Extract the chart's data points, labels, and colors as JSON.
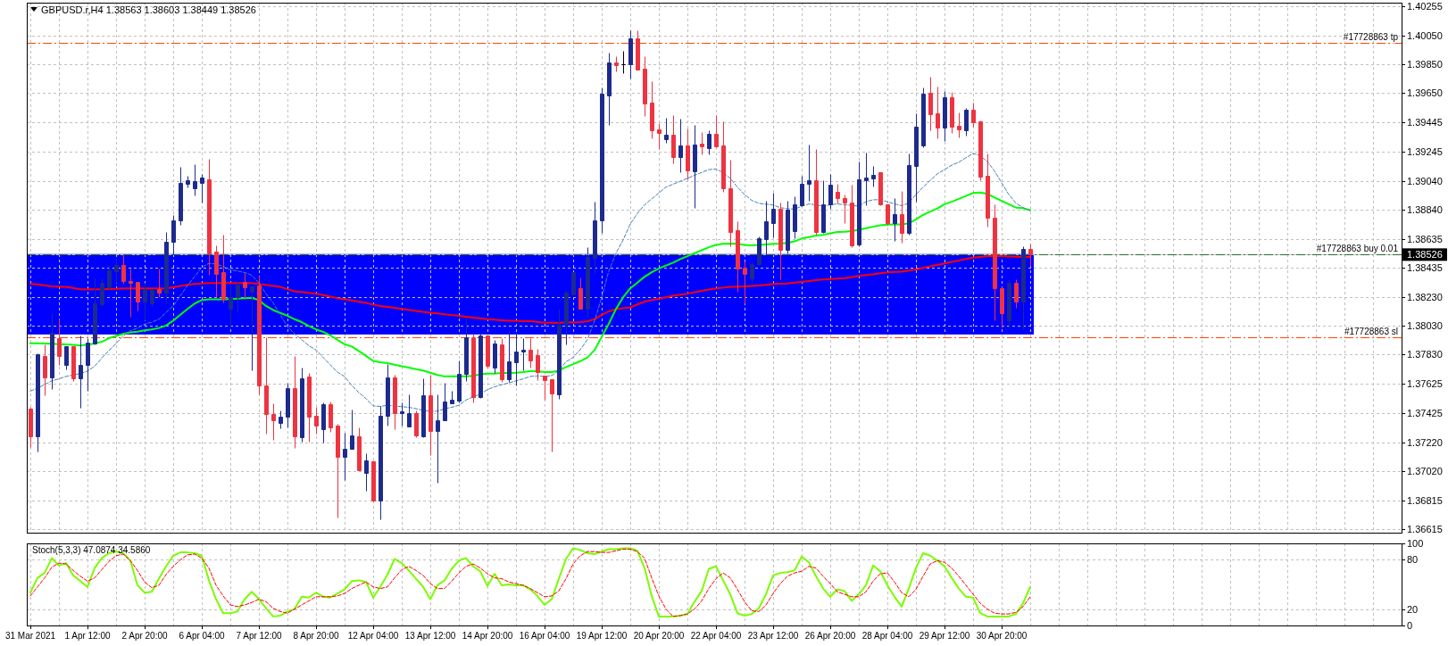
{
  "chart_data": [
    {
      "type": "candlestick",
      "title": "GBPUSD.r,H4 1.38563 1.38603 1.38449 1.38526",
      "categories": [
        null,
        null,
        null,
        null,
        null,
        null,
        null,
        null,
        null,
        null,
        null,
        null,
        null,
        null,
        null,
        null,
        null,
        null,
        null,
        null,
        null,
        null,
        null,
        null,
        null,
        null,
        null,
        null,
        null,
        null,
        null,
        null,
        null,
        null,
        null,
        null,
        null,
        null,
        null,
        null,
        null,
        null,
        null,
        null,
        null,
        null,
        null,
        null,
        null,
        null,
        null,
        null,
        null,
        null,
        null,
        null,
        null,
        null,
        null,
        null,
        null,
        null,
        null,
        null,
        null,
        null,
        null,
        null,
        null,
        null,
        null,
        null,
        null,
        null,
        null,
        null,
        null,
        null,
        null,
        null,
        null,
        null,
        null,
        null,
        null,
        null,
        null,
        null,
        null,
        null,
        null,
        null,
        null,
        null,
        null,
        null,
        null,
        null,
        null,
        null,
        null,
        null,
        null,
        null,
        null,
        null,
        null,
        null,
        null,
        null,
        null,
        null,
        null,
        null,
        null,
        null,
        null,
        null,
        null,
        null,
        null,
        null,
        null,
        null,
        null,
        null,
        null,
        null,
        null,
        null,
        null,
        null,
        null,
        null,
        null,
        null,
        null,
        null,
        null,
        null,
        null
      ],
      "ohlc": [
        [
          1.37453,
          1.37463,
          1.37187,
          1.37258
        ],
        [
          1.37258,
          1.37841,
          1.37156,
          1.37831
        ],
        [
          1.37821,
          1.37902,
          1.37549,
          1.37671
        ],
        [
          1.37671,
          1.38117,
          1.37592,
          1.37984
        ],
        [
          1.37943,
          1.38082,
          1.37759,
          1.37821
        ],
        [
          1.37759,
          1.37886,
          1.37729,
          1.37886
        ],
        [
          1.37886,
          1.37886,
          1.37647,
          1.37667
        ],
        [
          1.37667,
          1.37964,
          1.37457,
          1.37755
        ],
        [
          1.37755,
          1.37943,
          1.37579,
          1.37913
        ],
        [
          1.37906,
          1.38368,
          1.37902,
          1.38184
        ],
        [
          1.38178,
          1.38358,
          1.38168,
          1.38332
        ],
        [
          1.38301,
          1.38454,
          1.38276,
          1.38417
        ],
        [
          1.38413,
          1.38505,
          1.38332,
          1.38454
        ],
        [
          1.38454,
          1.3853,
          1.38321,
          1.38342
        ],
        [
          1.38342,
          1.3843,
          1.38092,
          1.38332
        ],
        [
          1.38336,
          1.38336,
          1.38137,
          1.38199
        ],
        [
          1.38199,
          1.38332,
          1.38066,
          1.38285
        ],
        [
          1.38188,
          1.38285,
          1.38168,
          1.38285
        ],
        [
          1.38285,
          1.3843,
          1.38229,
          1.38264
        ],
        [
          1.38264,
          1.38685,
          1.38188,
          1.38618
        ],
        [
          1.38618,
          1.38802,
          1.3853,
          1.38767
        ],
        [
          1.38767,
          1.39135,
          1.38735,
          1.39027
        ],
        [
          1.39021,
          1.39074,
          1.38992,
          1.39041
        ],
        [
          1.3899,
          1.39154,
          1.38939,
          1.39037
        ],
        [
          1.39027,
          1.39088,
          1.3889,
          1.39062
        ],
        [
          1.39053,
          1.3919,
          1.38383,
          1.38536
        ],
        [
          1.38546,
          1.38591,
          1.38229,
          1.38393
        ],
        [
          1.38403,
          1.38663,
          1.38193,
          1.38219
        ],
        [
          1.38148,
          1.38317,
          1.38025,
          1.38229
        ],
        [
          1.38229,
          1.38342,
          1.38127,
          1.38317
        ],
        [
          1.38336,
          1.38397,
          1.38229,
          1.38301
        ],
        [
          1.3827,
          1.38311,
          1.37722,
          1.38307
        ],
        [
          1.38311,
          1.38377,
          1.37555,
          1.37612
        ],
        [
          1.37612,
          1.37949,
          1.37279,
          1.37416
        ],
        [
          1.37418,
          1.37489,
          1.37236,
          1.37371
        ],
        [
          1.37355,
          1.37442,
          1.37318,
          1.37395
        ],
        [
          1.37395,
          1.37633,
          1.3732,
          1.37596
        ],
        [
          1.37596,
          1.37821,
          1.37183,
          1.37258
        ],
        [
          1.37253,
          1.37739,
          1.37224,
          1.37667
        ],
        [
          1.37678,
          1.37704,
          1.37224,
          1.37396
        ],
        [
          1.37402,
          1.37463,
          1.37279,
          1.37334
        ],
        [
          1.3731,
          1.37498,
          1.37218,
          1.37483
        ],
        [
          1.37483,
          1.37504,
          1.37293,
          1.37326
        ],
        [
          1.37334,
          1.37347,
          1.36697,
          1.3712
        ],
        [
          1.37116,
          1.37285,
          1.36954,
          1.37173
        ],
        [
          1.37171,
          1.37449,
          1.37171,
          1.37265
        ],
        [
          1.37259,
          1.37326,
          1.37022,
          1.37022
        ],
        [
          1.37009,
          1.37142,
          1.36881,
          1.37091
        ],
        [
          1.37085,
          1.37091,
          1.36809,
          1.36813
        ],
        [
          1.36813,
          1.37473,
          1.36682,
          1.37406
        ],
        [
          1.37406,
          1.37764,
          1.37334,
          1.37669
        ],
        [
          1.37669,
          1.37688,
          1.3731,
          1.37424
        ],
        [
          1.37424,
          1.37498,
          1.37338,
          1.37434
        ],
        [
          1.37328,
          1.37555,
          1.37328,
          1.37424
        ],
        [
          1.37424,
          1.37443,
          1.37255,
          1.37265
        ],
        [
          1.37259,
          1.37663,
          1.37253,
          1.37547
        ],
        [
          1.37547,
          1.37688,
          1.37132,
          1.37297
        ],
        [
          1.37297,
          1.37553,
          1.36936,
          1.37375
        ],
        [
          1.37371,
          1.37633,
          1.37371,
          1.37504
        ],
        [
          1.37488,
          1.3758,
          1.37488,
          1.37516
        ],
        [
          1.37512,
          1.37792,
          1.37494,
          1.37696
        ],
        [
          1.37696,
          1.38086,
          1.37647,
          1.3795
        ],
        [
          1.3795,
          1.37974,
          1.375,
          1.37535
        ],
        [
          1.37535,
          1.37984,
          1.37526,
          1.37964
        ],
        [
          1.37964,
          1.37964,
          1.37739,
          1.37749
        ],
        [
          1.37739,
          1.37929,
          1.37702,
          1.37909
        ],
        [
          1.37903,
          1.37947,
          1.37641,
          1.37657
        ],
        [
          1.37657,
          1.37994,
          1.37641,
          1.3778
        ],
        [
          1.37776,
          1.37988,
          1.37612,
          1.37853
        ],
        [
          1.37849,
          1.37947,
          1.37719,
          1.37866
        ],
        [
          1.37866,
          1.37947,
          1.37739,
          1.37788
        ],
        [
          1.37827,
          1.37868,
          1.37653,
          1.37706
        ],
        [
          1.37682,
          1.37682,
          1.37518,
          1.37653
        ],
        [
          1.37657,
          1.37657,
          1.37156,
          1.37559
        ],
        [
          1.37555,
          1.38152,
          1.37524,
          1.38035
        ],
        [
          1.38045,
          1.3828,
          1.37898,
          1.3826
        ],
        [
          1.3825,
          1.38403,
          1.3825,
          1.38403
        ],
        [
          1.38295,
          1.38368,
          1.38147,
          1.38152
        ],
        [
          1.38152,
          1.38577,
          1.3809,
          1.38511
        ],
        [
          1.38505,
          1.38893,
          1.38393,
          1.38767
        ],
        [
          1.38767,
          1.39691,
          1.38679,
          1.39644
        ],
        [
          1.39633,
          1.3993,
          1.39431,
          1.39864
        ],
        [
          1.39864,
          1.39905,
          1.39803,
          1.39848
        ],
        [
          1.39854,
          1.39942,
          1.39787,
          1.39854
        ],
        [
          1.39854,
          1.40085,
          1.39752,
          1.40034
        ],
        [
          1.40034,
          1.40089,
          1.39813,
          1.39817
        ],
        [
          1.39819,
          1.39905,
          1.39492,
          1.39578
        ],
        [
          1.39582,
          1.39736,
          1.39333,
          1.39394
        ],
        [
          1.39398,
          1.39439,
          1.39261,
          1.3937
        ],
        [
          1.39327,
          1.39476,
          1.39302,
          1.39362
        ],
        [
          1.39362,
          1.39496,
          1.39159,
          1.39204
        ],
        [
          1.39204,
          1.3947,
          1.39102,
          1.39288
        ],
        [
          1.39288,
          1.39404,
          1.39047,
          1.39112
        ],
        [
          1.39108,
          1.39431,
          1.38849,
          1.39292
        ],
        [
          1.393,
          1.39378,
          1.39221,
          1.39278
        ],
        [
          1.39266,
          1.39394,
          1.39221,
          1.39368
        ],
        [
          1.39368,
          1.39496,
          1.39272,
          1.39282
        ],
        [
          1.39288,
          1.39456,
          1.38965,
          1.38985
        ],
        [
          1.38985,
          1.39186,
          1.38587,
          1.38683
        ],
        [
          1.38693,
          1.38755,
          1.3827,
          1.38427
        ],
        [
          1.38434,
          1.38479,
          1.38188,
          1.38389
        ],
        [
          1.38362,
          1.38479,
          1.38331,
          1.38458
        ],
        [
          1.38458,
          1.38654,
          1.38454,
          1.38638
        ],
        [
          1.38634,
          1.38904,
          1.38526,
          1.38755
        ],
        [
          1.38744,
          1.38955,
          1.38648,
          1.38846
        ],
        [
          1.38842,
          1.38887,
          1.38352,
          1.3856
        ],
        [
          1.3856,
          1.38904,
          1.38532,
          1.38838
        ],
        [
          1.38689,
          1.38934,
          1.38638,
          1.38877
        ],
        [
          1.38869,
          1.39077,
          1.38863,
          1.39022
        ],
        [
          1.39022,
          1.39292,
          1.38904,
          1.39043
        ],
        [
          1.39043,
          1.39261,
          1.38663,
          1.38683
        ],
        [
          1.38683,
          1.39043,
          1.38675,
          1.38873
        ],
        [
          1.38873,
          1.39088,
          1.38842,
          1.39012
        ],
        [
          1.38965,
          1.39016,
          1.38884,
          1.38918
        ],
        [
          1.3892,
          1.38945,
          1.38745,
          1.38888
        ],
        [
          1.3889,
          1.39012,
          1.38577,
          1.38591
        ],
        [
          1.38597,
          1.39176,
          1.38581,
          1.39047
        ],
        [
          1.39043,
          1.39237,
          1.38867,
          1.39061
        ],
        [
          1.39057,
          1.39145,
          1.39002,
          1.39082
        ],
        [
          1.39098,
          1.39098,
          1.38867,
          1.38873
        ],
        [
          1.38877,
          1.38877,
          1.38734,
          1.38745
        ],
        [
          1.38745,
          1.3892,
          1.38624,
          1.3881
        ],
        [
          1.3881,
          1.38969,
          1.38608,
          1.38679
        ],
        [
          1.38675,
          1.39231,
          1.38663,
          1.39149
        ],
        [
          1.39143,
          1.39507,
          1.38894,
          1.39415
        ],
        [
          1.39288,
          1.39691,
          1.39276,
          1.39644
        ],
        [
          1.3965,
          1.39766,
          1.39394,
          1.39503
        ],
        [
          1.39507,
          1.39697,
          1.39333,
          1.39411
        ],
        [
          1.39411,
          1.39664,
          1.39319,
          1.39619
        ],
        [
          1.39619,
          1.39656,
          1.39374,
          1.39419
        ],
        [
          1.39421,
          1.39513,
          1.39343,
          1.394
        ],
        [
          1.39394,
          1.39548,
          1.39353,
          1.39537
        ],
        [
          1.39537,
          1.39583,
          1.39419,
          1.39449
        ],
        [
          1.39451,
          1.3946,
          1.39043,
          1.39068
        ],
        [
          1.39072,
          1.39231,
          1.3872,
          1.38781
        ],
        [
          1.38785,
          1.38873,
          1.38066,
          1.38291
        ],
        [
          1.38295,
          1.38307,
          1.38021,
          1.38117
        ],
        [
          1.3807,
          1.38352,
          1.38015,
          1.38332
        ],
        [
          1.38332,
          1.38356,
          1.38158,
          1.38199
        ],
        [
          1.38199,
          1.38587,
          1.38005,
          1.38566
        ],
        [
          1.38563,
          1.38603,
          1.38449,
          1.38526
        ]
      ],
      "colors": [
        "#ef3340",
        "#1c2b8d",
        "#ef3340",
        "#1c2b8d",
        "#ef3340",
        "#1c2b8d",
        "#ef3340",
        "#1c2b8d",
        "#1c2b8d",
        "#1c2b8d",
        "#1c2b8d",
        "#1c2b8d",
        "#1c2b8d",
        "#ef3340",
        "#ef3340",
        "#ef3340",
        "#1c2b8d",
        "#1c2b8d",
        "#ef3340",
        "#1c2b8d",
        "#1c2b8d",
        "#1c2b8d",
        "#1c2b8d",
        "#1c2b8d",
        "#1c2b8d",
        "#ef3340",
        "#ef3340",
        "#ef3340",
        "#1c2b8d",
        "#1c2b8d",
        "#ef3340",
        "#1c2b8d",
        "#ef3340",
        "#ef3340",
        "#ef3340",
        "#1c2b8d",
        "#1c2b8d",
        "#ef3340",
        "#1c2b8d",
        "#ef3340",
        "#ef3340",
        "#1c2b8d",
        "#ef3340",
        "#ef3340",
        "#1c2b8d",
        "#1c2b8d",
        "#ef3340",
        "#1c2b8d",
        "#ef3340",
        "#1c2b8d",
        "#1c2b8d",
        "#ef3340",
        "#1c2b8d",
        "#1c2b8d",
        "#ef3340",
        "#1c2b8d",
        "#ef3340",
        "#1c2b8d",
        "#1c2b8d",
        "#1c2b8d",
        "#1c2b8d",
        "#1c2b8d",
        "#ef3340",
        "#1c2b8d",
        "#ef3340",
        "#1c2b8d",
        "#ef3340",
        "#1c2b8d",
        "#1c2b8d",
        "#1c2b8d",
        "#ef3340",
        "#ef3340",
        "#ef3340",
        "#ef3340",
        "#1c2b8d",
        "#1c2b8d",
        "#1c2b8d",
        "#ef3340",
        "#1c2b8d",
        "#1c2b8d",
        "#1c2b8d",
        "#1c2b8d",
        "#ef3340",
        "#000000",
        "#1c2b8d",
        "#ef3340",
        "#ef3340",
        "#ef3340",
        "#ef3340",
        "#1c2b8d",
        "#ef3340",
        "#1c2b8d",
        "#ef3340",
        "#1c2b8d",
        "#ef3340",
        "#1c2b8d",
        "#ef3340",
        "#ef3340",
        "#ef3340",
        "#ef3340",
        "#ef3340",
        "#1c2b8d",
        "#1c2b8d",
        "#1c2b8d",
        "#1c2b8d",
        "#ef3340",
        "#1c2b8d",
        "#1c2b8d",
        "#1c2b8d",
        "#1c2b8d",
        "#ef3340",
        "#1c2b8d",
        "#1c2b8d",
        "#ef3340",
        "#ef3340",
        "#ef3340",
        "#1c2b8d",
        "#1c2b8d",
        "#1c2b8d",
        "#ef3340",
        "#ef3340",
        "#1c2b8d",
        "#ef3340",
        "#1c2b8d",
        "#1c2b8d",
        "#1c2b8d",
        "#ef3340",
        "#ef3340",
        "#1c2b8d",
        "#ef3340",
        "#ef3340",
        "#1c2b8d",
        "#ef3340",
        "#ef3340",
        "#ef3340",
        "#ef3340",
        "#ef3340",
        "#1c2b8d",
        "#ef3340",
        "#1c2b8d",
        "#ef3340"
      ],
      "series": [
        {
          "type": "line",
          "color": "#ff0000",
          "values": [
            1.38322,
            1.38318,
            1.38312,
            1.38305,
            1.38303,
            1.38301,
            1.38293,
            1.38285,
            1.38285,
            1.38285,
            1.38285,
            1.38286,
            1.38287,
            1.38291,
            1.38291,
            1.38291,
            1.38291,
            1.38291,
            1.38291,
            1.38291,
            1.38299,
            1.38307,
            1.38315,
            1.38322,
            1.38325,
            1.38328,
            1.38328,
            1.38328,
            1.38328,
            1.38328,
            1.38328,
            1.38328,
            1.38322,
            1.38316,
            1.38308,
            1.38301,
            1.38285,
            1.3827,
            1.38265,
            1.38259,
            1.38254,
            1.38244,
            1.38233,
            1.38223,
            1.38215,
            1.38207,
            1.38199,
            1.38189,
            1.38178,
            1.38168,
            1.38161,
            1.38155,
            1.38148,
            1.38141,
            1.38134,
            1.38127,
            1.38122,
            1.38116,
            1.38111,
            1.38105,
            1.38099,
            1.38093,
            1.38087,
            1.38082,
            1.38076,
            1.38073,
            1.38069,
            1.38066,
            1.38065,
            1.38063,
            1.38062,
            1.38057,
            1.38052,
            1.38052,
            1.38052,
            1.38054,
            1.38055,
            1.38056,
            1.38062,
            1.38076,
            1.38107,
            1.38131,
            1.38147,
            1.38153,
            1.38158,
            1.38179,
            1.38199,
            1.38209,
            1.38219,
            1.38229,
            1.38239,
            1.38247,
            1.38254,
            1.38264,
            1.38274,
            1.38283,
            1.38291,
            1.38296,
            1.38301,
            1.38303,
            1.38305,
            1.38308,
            1.38311,
            1.38316,
            1.38321,
            1.38323,
            1.38325,
            1.38331,
            1.38336,
            1.38342,
            1.38348,
            1.38352,
            1.38356,
            1.38359,
            1.38362,
            1.3837,
            1.38378,
            1.38384,
            1.38389,
            1.38396,
            1.38403,
            1.38405,
            1.38407,
            1.38415,
            1.38423,
            1.38434,
            1.38444,
            1.38454,
            1.38464,
            1.38475,
            1.38485,
            1.38495,
            1.38505,
            1.3851,
            1.38515,
            1.38515,
            1.38515,
            1.38513,
            1.38511,
            1.3851,
            1.38509
          ]
        },
        {
          "type": "line",
          "color": "#00ff00",
          "values": [
            1.37909,
            1.37908,
            1.37907,
            1.37905,
            1.37903,
            1.379,
            1.37897,
            1.37893,
            1.37899,
            1.37907,
            1.37919,
            1.37944,
            1.3796,
            1.37974,
            1.37984,
            1.37989,
            1.37999,
            1.38005,
            1.38015,
            1.38032,
            1.38066,
            1.38107,
            1.38148,
            1.38185,
            1.38209,
            1.38215,
            1.38215,
            1.38215,
            1.38217,
            1.38219,
            1.38223,
            1.38225,
            1.38209,
            1.38168,
            1.3814,
            1.3812,
            1.381,
            1.38076,
            1.38056,
            1.38029,
            1.38005,
            1.37988,
            1.37964,
            1.37933,
            1.37902,
            1.37886,
            1.37855,
            1.37821,
            1.37786,
            1.37776,
            1.3777,
            1.37759,
            1.37749,
            1.37739,
            1.37729,
            1.37719,
            1.37704,
            1.37688,
            1.37678,
            1.37678,
            1.37678,
            1.37678,
            1.37682,
            1.37692,
            1.37698,
            1.37698,
            1.37702,
            1.37702,
            1.37704,
            1.37708,
            1.37714,
            1.37714,
            1.37708,
            1.37708,
            1.37718,
            1.37743,
            1.37763,
            1.37784,
            1.3781,
            1.37861,
            1.37953,
            1.38045,
            1.38147,
            1.38229,
            1.38291,
            1.38331,
            1.38372,
            1.38403,
            1.3843,
            1.3845,
            1.3847,
            1.38495,
            1.38515,
            1.38536,
            1.38556,
            1.38577,
            1.38593,
            1.38601,
            1.38603,
            1.38601,
            1.38593,
            1.38591,
            1.38593,
            1.38597,
            1.38601,
            1.38603,
            1.38607,
            1.38618,
            1.38638,
            1.38648,
            1.38658,
            1.38664,
            1.38674,
            1.38683,
            1.38685,
            1.38689,
            1.38699,
            1.3871,
            1.3872,
            1.3873,
            1.38734,
            1.38736,
            1.38736,
            1.38744,
            1.38771,
            1.38802,
            1.38826,
            1.38847,
            1.38877,
            1.38894,
            1.38914,
            1.38934,
            1.38955,
            1.38959,
            1.38949,
            1.38924,
            1.389,
            1.38877,
            1.38853,
            1.38849,
            1.38836
          ]
        },
        {
          "type": "line",
          "color": "#4682b4",
          "line_style": "dashed",
          "values": [
            1.37576,
            1.37596,
            1.37621,
            1.37647,
            1.37661,
            1.37678,
            1.37688,
            1.37698,
            1.37715,
            1.37749,
            1.37805,
            1.37858,
            1.37907,
            1.3796,
            1.37995,
            1.38015,
            1.38042,
            1.38056,
            1.38076,
            1.38123,
            1.38168,
            1.3824,
            1.38311,
            1.38373,
            1.38438,
            1.38465,
            1.38461,
            1.38444,
            1.3842,
            1.38412,
            1.38401,
            1.38383,
            1.38328,
            1.38254,
            1.38189,
            1.38107,
            1.38025,
            1.37974,
            1.37933,
            1.37892,
            1.37862,
            1.3781,
            1.37759,
            1.37708,
            1.37678,
            1.37616,
            1.37565,
            1.37524,
            1.37473,
            1.37469,
            1.37477,
            1.37473,
            1.37467,
            1.37463,
            1.37453,
            1.37442,
            1.37436,
            1.37436,
            1.37453,
            1.37463,
            1.37477,
            1.37514,
            1.37535,
            1.37555,
            1.37586,
            1.37606,
            1.3762,
            1.37633,
            1.37647,
            1.37661,
            1.37678,
            1.37682,
            1.37678,
            1.37684,
            1.37718,
            1.3778,
            1.3781,
            1.37865,
            1.37933,
            1.38066,
            1.38229,
            1.38413,
            1.38536,
            1.38628,
            1.3874,
            1.38812,
            1.38873,
            1.38914,
            1.38955,
            1.38996,
            1.39016,
            1.39037,
            1.39057,
            1.39078,
            1.39098,
            1.39118,
            1.39122,
            1.39098,
            1.39057,
            1.38996,
            1.38945,
            1.38904,
            1.38883,
            1.38877,
            1.38871,
            1.38853,
            1.38846,
            1.38842,
            1.38863,
            1.38879,
            1.38873,
            1.38863,
            1.38873,
            1.38879,
            1.38873,
            1.38869,
            1.38863,
            1.38894,
            1.38908,
            1.38908,
            1.38894,
            1.38879,
            1.38867,
            1.38884,
            1.38945,
            1.38996,
            1.39043,
            1.39088,
            1.39118,
            1.39149,
            1.39169,
            1.392,
            1.39231,
            1.39214,
            1.39174,
            1.39108,
            1.39026,
            1.38945,
            1.38884,
            1.38853,
            1.38832
          ]
        }
      ],
      "ylim": [
        1.3659,
        1.4028
      ],
      "yticks": [
        1.36615,
        1.36815,
        {
          "value": 1.3702,
          "label": "1.37020"
        },
        {
          "value": 1.3722,
          "label": "1.37220"
        },
        1.37425,
        1.37625,
        {
          "value": 1.3783,
          "label": "1.37830"
        },
        {
          "value": 1.3803,
          "label": "1.38030"
        },
        {
          "value": 1.3823,
          "label": "1.38230"
        },
        1.38435,
        1.38635,
        {
          "value": 1.3884,
          "label": "1.38840"
        },
        {
          "value": 1.3904,
          "label": "1.39040"
        },
        1.39245,
        1.39445,
        {
          "value": 1.3965,
          "label": "1.39650"
        },
        {
          "value": 1.3985,
          "label": "1.39850"
        },
        {
          "value": 1.4005,
          "label": "1.40050"
        },
        1.40255
      ],
      "grid": true,
      "ref_lines": [
        {
          "axis": "y",
          "value": 1.4,
          "label": "#17728863 tp",
          "color": "#ff4500",
          "line_style": "dashed"
        },
        {
          "axis": "y",
          "value": 1.38526,
          "label": "1.38526",
          "color": "#c0c0c0"
        },
        {
          "axis": "y",
          "value": 1.3853,
          "label": "#17728863 buy 0.01",
          "color": "#2f6b2f",
          "line_style": "dashed"
        },
        {
          "axis": "y",
          "value": 1.3795,
          "label": "#17728863 sl",
          "color": "#ff4500",
          "line_style": "dashed"
        }
      ],
      "bands": [
        {
          "axis": "y",
          "from": 1.3797,
          "to": 1.3853,
          "color": "#0000ff"
        }
      ]
    },
    {
      "type": "line",
      "title": "Stoch(5,3,3) 47.0874 34.5860",
      "categories": [
        "31 Mar 2021",
        null,
        null,
        null,
        null,
        null,
        null,
        null,
        "1 Apr 12:00",
        null,
        null,
        null,
        null,
        null,
        null,
        null,
        "2 Apr 20:00",
        null,
        null,
        null,
        null,
        null,
        null,
        null,
        "6 Apr 04:00",
        null,
        null,
        null,
        null,
        null,
        null,
        null,
        "7 Apr 12:00",
        null,
        null,
        null,
        null,
        null,
        null,
        null,
        "8 Apr 20:00",
        null,
        null,
        null,
        null,
        null,
        null,
        null,
        "12 Apr 04:00",
        null,
        null,
        null,
        null,
        null,
        null,
        null,
        "13 Apr 12:00",
        null,
        null,
        null,
        null,
        null,
        null,
        null,
        "14 Apr 20:00",
        null,
        null,
        null,
        null,
        null,
        null,
        null,
        "16 Apr 04:00",
        null,
        null,
        null,
        null,
        null,
        null,
        null,
        "19 Apr 12:00",
        null,
        null,
        null,
        null,
        null,
        null,
        null,
        "20 Apr 20:00",
        null,
        null,
        null,
        null,
        null,
        null,
        null,
        "22 Apr 04:00",
        null,
        null,
        null,
        null,
        null,
        null,
        null,
        "23 Apr 12:00",
        null,
        null,
        null,
        null,
        null,
        null,
        null,
        "26 Apr 20:00",
        null,
        null,
        null,
        null,
        null,
        null,
        null,
        "28 Apr 04:00",
        null,
        null,
        null,
        null,
        null,
        null,
        null,
        "29 Apr 12:00",
        null,
        null,
        null,
        null,
        null,
        null,
        null,
        "30 Apr 20:00",
        null,
        null,
        null,
        null
      ],
      "series": [
        {
          "color": "#7cfc00",
          "values": [
            40,
            58,
            64,
            82,
            73,
            76,
            61,
            54,
            47,
            70,
            82,
            88,
            90,
            88,
            79,
            49,
            40,
            41,
            57,
            72,
            85,
            89,
            89,
            88,
            85,
            55,
            32,
            15,
            15,
            17,
            32,
            41,
            32,
            21,
            11,
            12,
            17,
            20,
            35,
            34,
            40,
            35,
            34,
            39,
            44,
            54,
            55,
            53,
            34,
            47,
            62,
            81,
            76,
            67,
            57,
            47,
            32,
            49,
            55,
            69,
            79,
            82,
            72,
            66,
            48,
            63,
            49,
            50,
            49,
            49,
            44,
            36,
            25,
            32,
            57,
            81,
            94,
            92,
            88,
            87,
            90,
            93,
            93,
            94,
            94,
            91,
            70,
            36,
            11,
            11,
            11,
            12,
            14,
            29,
            42,
            69,
            72,
            55,
            38,
            15,
            12,
            14,
            21,
            38,
            61,
            64,
            65,
            67,
            84,
            77,
            60,
            45,
            35,
            44,
            42,
            30,
            38,
            49,
            73,
            66,
            49,
            35,
            23,
            45,
            70,
            88,
            85,
            79,
            72,
            58,
            45,
            35,
            34,
            15,
            11,
            11,
            11,
            11,
            14,
            27,
            47
          ]
        },
        {
          "color": "#ff0000",
          "line_style": "dashed",
          "values": [
            36,
            47,
            58,
            71,
            76,
            75,
            67,
            60,
            54,
            58,
            68,
            78,
            85,
            87,
            79,
            67,
            53,
            46,
            49,
            62,
            72,
            80,
            86,
            87,
            82,
            70,
            49,
            36,
            25,
            23,
            25,
            28,
            32,
            29,
            21,
            17,
            15,
            20,
            25,
            30,
            35,
            35,
            35,
            36,
            39,
            45,
            49,
            53,
            47,
            45,
            47,
            58,
            68,
            72,
            67,
            61,
            51,
            45,
            45,
            54,
            64,
            72,
            75,
            70,
            63,
            58,
            57,
            53,
            51,
            49,
            45,
            40,
            35,
            36,
            42,
            57,
            75,
            85,
            90,
            90,
            89,
            89,
            91,
            93,
            93,
            90,
            82,
            58,
            36,
            20,
            11,
            12,
            14,
            20,
            30,
            45,
            57,
            64,
            58,
            44,
            29,
            18,
            17,
            25,
            39,
            51,
            60,
            64,
            66,
            72,
            70,
            60,
            51,
            41,
            38,
            35,
            35,
            41,
            54,
            63,
            64,
            53,
            40,
            35,
            44,
            60,
            75,
            79,
            77,
            70,
            60,
            49,
            38,
            27,
            20,
            15,
            14,
            14,
            16,
            23,
            35
          ]
        }
      ],
      "ylim": [
        0,
        100
      ],
      "yticks": [
        0,
        20,
        80,
        100
      ],
      "grid": true
    }
  ]
}
